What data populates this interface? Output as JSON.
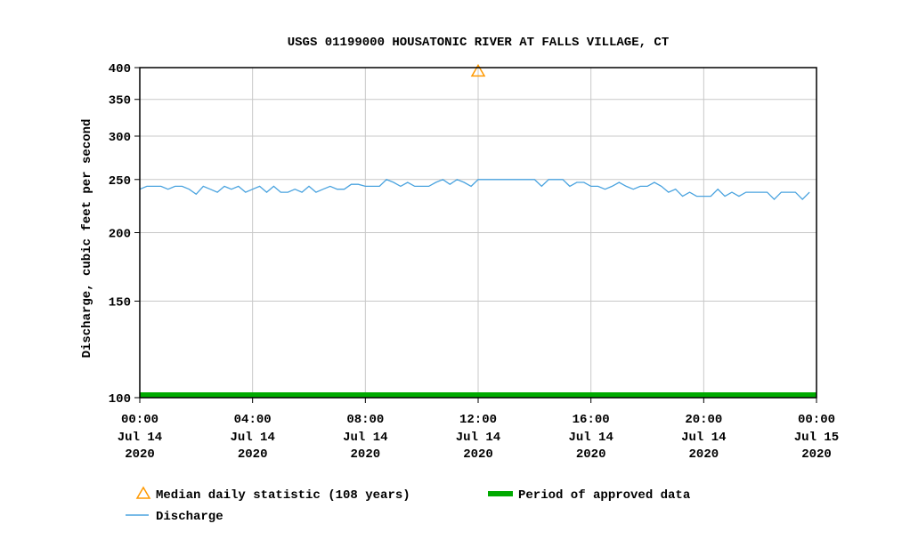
{
  "chart_data": {
    "type": "line",
    "title": "USGS 01199000 HOUSATONIC RIVER AT FALLS VILLAGE, CT",
    "ylabel": "Discharge, cubic feet per second",
    "xlabel": "",
    "yscale": "log",
    "ylim": [
      100,
      400
    ],
    "yticks": [
      100,
      150,
      200,
      250,
      300,
      350,
      400
    ],
    "xlim_hours": [
      0,
      24
    ],
    "xticks": [
      {
        "hour": 0,
        "time": "00:00",
        "date": "Jul 14",
        "year": "2020"
      },
      {
        "hour": 4,
        "time": "04:00",
        "date": "Jul 14",
        "year": "2020"
      },
      {
        "hour": 8,
        "time": "08:00",
        "date": "Jul 14",
        "year": "2020"
      },
      {
        "hour": 12,
        "time": "12:00",
        "date": "Jul 14",
        "year": "2020"
      },
      {
        "hour": 16,
        "time": "16:00",
        "date": "Jul 14",
        "year": "2020"
      },
      {
        "hour": 20,
        "time": "20:00",
        "date": "Jul 14",
        "year": "2020"
      },
      {
        "hour": 24,
        "time": "00:00",
        "date": "Jul 15",
        "year": "2020"
      }
    ],
    "grid": true,
    "series": [
      {
        "name": "Discharge",
        "color": "#4aa3df",
        "interval_minutes": 15,
        "values": [
          240,
          243,
          243,
          243,
          240,
          243,
          243,
          240,
          235,
          243,
          240,
          237,
          243,
          240,
          243,
          237,
          240,
          243,
          237,
          243,
          237,
          237,
          240,
          237,
          243,
          237,
          240,
          243,
          240,
          240,
          245,
          245,
          243,
          243,
          243,
          250,
          247,
          243,
          247,
          243,
          243,
          243,
          247,
          250,
          245,
          250,
          247,
          243,
          250,
          250,
          250,
          250,
          250,
          250,
          250,
          250,
          250,
          243,
          250,
          250,
          250,
          243,
          247,
          247,
          243,
          243,
          240,
          243,
          247,
          243,
          240,
          243,
          243,
          247,
          243,
          237,
          240,
          233,
          237,
          233,
          233,
          233,
          240,
          233,
          237,
          233,
          237,
          237,
          237,
          237,
          230,
          237,
          237,
          237,
          230,
          237
        ]
      }
    ],
    "median": {
      "name": "Median daily statistic (108 years)",
      "hour": 12,
      "value": 395,
      "color": "#ff9900"
    },
    "approved": {
      "name": "Period of approved data",
      "color": "#00aa00"
    },
    "legend_position": "bottom"
  }
}
